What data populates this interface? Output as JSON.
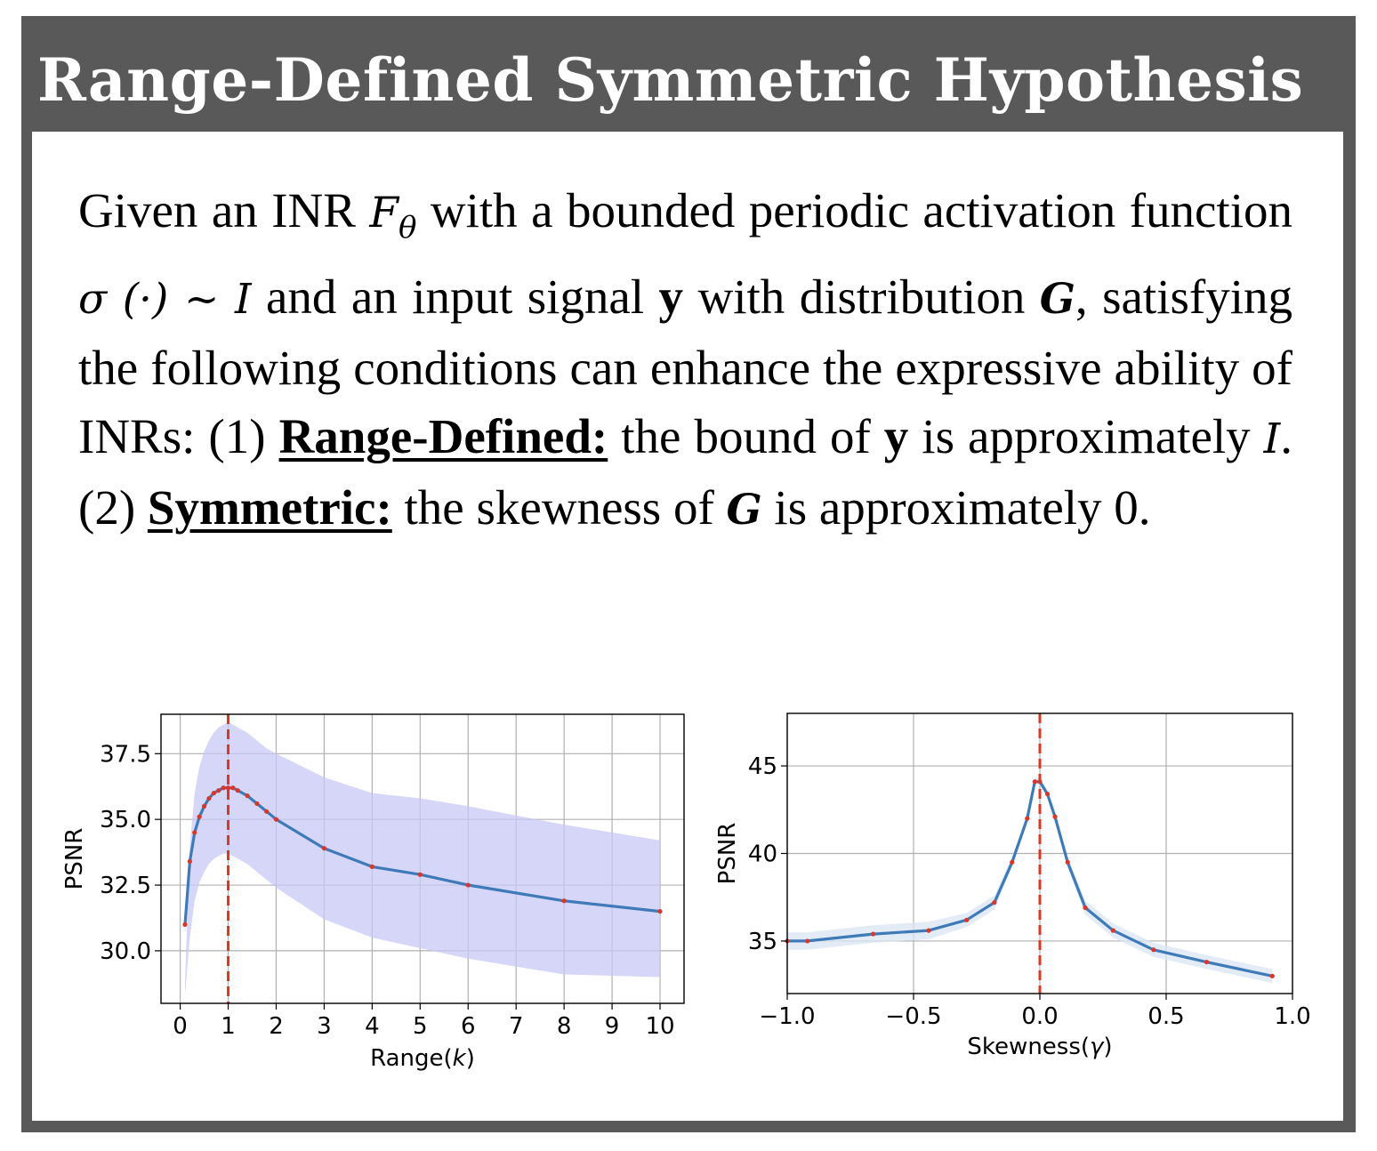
{
  "header": {
    "title": "Range-Defined Symmetric Hypothesis"
  },
  "hypothesis": {
    "p1": "Given an INR ",
    "m_F": "F",
    "m_theta": "θ",
    "p2": " with a bounded periodic activation function ",
    "m_sigma": "σ (·) ~ I",
    "p3": " and an input signal ",
    "b_y1": "y",
    "p4": " with distribution ",
    "m_G1": "G",
    "p5": ", satisfying the following conditions can enhance the expressive ability of INRs: (1) ",
    "u1": "Range-Defined:",
    "p6": " the bound of ",
    "b_y2": "y",
    "p7": " is approximately ",
    "m_I": "I",
    "p8": ". (2) ",
    "u2": "Symmetric:",
    "p9": " the skewness of ",
    "m_G2": "G",
    "p10": " is approximately 0."
  },
  "colors": {
    "line": "#3f7ab8",
    "marker": "#d9372a",
    "band_left": "#c8c8f5",
    "band_right": "#d9e6f3",
    "vline": "#d9372a",
    "grid": "#b0b0b0"
  },
  "chart_data": [
    {
      "type": "line",
      "xlabel_prefix": "Range(",
      "xlabel_var": "k",
      "xlabel_suffix": ")",
      "ylabel": "PSNR",
      "xlim": [
        -0.4,
        10.5
      ],
      "ylim": [
        28.0,
        39.0
      ],
      "xticks": [
        0,
        1,
        2,
        3,
        4,
        5,
        6,
        7,
        8,
        9,
        10
      ],
      "xtick_labels": [
        "0",
        "1",
        "2",
        "3",
        "4",
        "5",
        "6",
        "7",
        "8",
        "9",
        "10"
      ],
      "yticks": [
        30.0,
        32.5,
        35.0,
        37.5
      ],
      "ytick_labels": [
        "30.0",
        "32.5",
        "35.0",
        "37.5"
      ],
      "grid": true,
      "reference_line_x": 1.0,
      "series": [
        {
          "x": [
            0.1,
            0.2,
            0.3,
            0.4,
            0.5,
            0.6,
            0.7,
            0.8,
            0.9,
            1.0,
            1.1,
            1.2,
            1.4,
            1.6,
            1.8,
            2.0,
            3.0,
            4.0,
            5.0,
            6.0,
            8.0,
            10.0
          ],
          "y": [
            31.0,
            33.4,
            34.5,
            35.1,
            35.5,
            35.8,
            36.0,
            36.1,
            36.2,
            36.2,
            36.2,
            36.1,
            35.9,
            35.6,
            35.3,
            35.0,
            33.9,
            33.2,
            32.9,
            32.5,
            31.9,
            31.5
          ],
          "upper": [
            28.8,
            34.0,
            36.0,
            37.0,
            37.6,
            38.0,
            38.3,
            38.5,
            38.6,
            38.7,
            38.6,
            38.5,
            38.3,
            38.0,
            37.7,
            37.5,
            36.6,
            36.0,
            35.8,
            35.5,
            34.8,
            34.2
          ],
          "lower": [
            28.3,
            30.5,
            31.9,
            32.6,
            33.0,
            33.3,
            33.5,
            33.6,
            33.7,
            33.7,
            33.6,
            33.5,
            33.3,
            33.0,
            32.7,
            32.4,
            31.2,
            30.5,
            30.1,
            29.7,
            29.1,
            29.0
          ]
        }
      ]
    },
    {
      "type": "line",
      "xlabel_prefix": "Skewness(",
      "xlabel_var": "γ",
      "xlabel_suffix": ")",
      "ylabel": "PSNR",
      "xlim": [
        -1.0,
        1.0
      ],
      "ylim": [
        32.0,
        48.0
      ],
      "xticks": [
        -1.0,
        -0.5,
        0.0,
        0.5,
        1.0
      ],
      "xtick_labels": [
        "−1.0",
        "−0.5",
        "0.0",
        "0.5",
        "1.0"
      ],
      "yticks": [
        35,
        40,
        45
      ],
      "ytick_labels": [
        "35",
        "40",
        "45"
      ],
      "grid": true,
      "reference_line_x": 0.0,
      "series": [
        {
          "x": [
            -1.0,
            -0.92,
            -0.66,
            -0.44,
            -0.29,
            -0.18,
            -0.11,
            -0.05,
            -0.02,
            0.0,
            0.03,
            0.06,
            0.11,
            0.18,
            0.29,
            0.45,
            0.66,
            0.92
          ],
          "y": [
            35.0,
            35.0,
            35.4,
            35.6,
            36.2,
            37.2,
            39.5,
            42.0,
            44.1,
            44.1,
            43.4,
            42.1,
            39.5,
            36.9,
            35.6,
            34.5,
            33.8,
            33.0
          ],
          "upper": [
            35.5,
            35.5,
            35.9,
            36.1,
            36.6,
            37.6,
            39.8,
            42.2,
            44.3,
            44.3,
            43.6,
            42.3,
            39.8,
            37.3,
            36.0,
            34.9,
            34.2,
            33.4
          ],
          "lower": [
            34.5,
            34.5,
            34.9,
            35.1,
            35.8,
            36.8,
            39.2,
            41.8,
            43.9,
            43.9,
            43.2,
            41.9,
            39.2,
            36.5,
            35.2,
            34.1,
            33.4,
            32.6
          ]
        }
      ]
    }
  ]
}
